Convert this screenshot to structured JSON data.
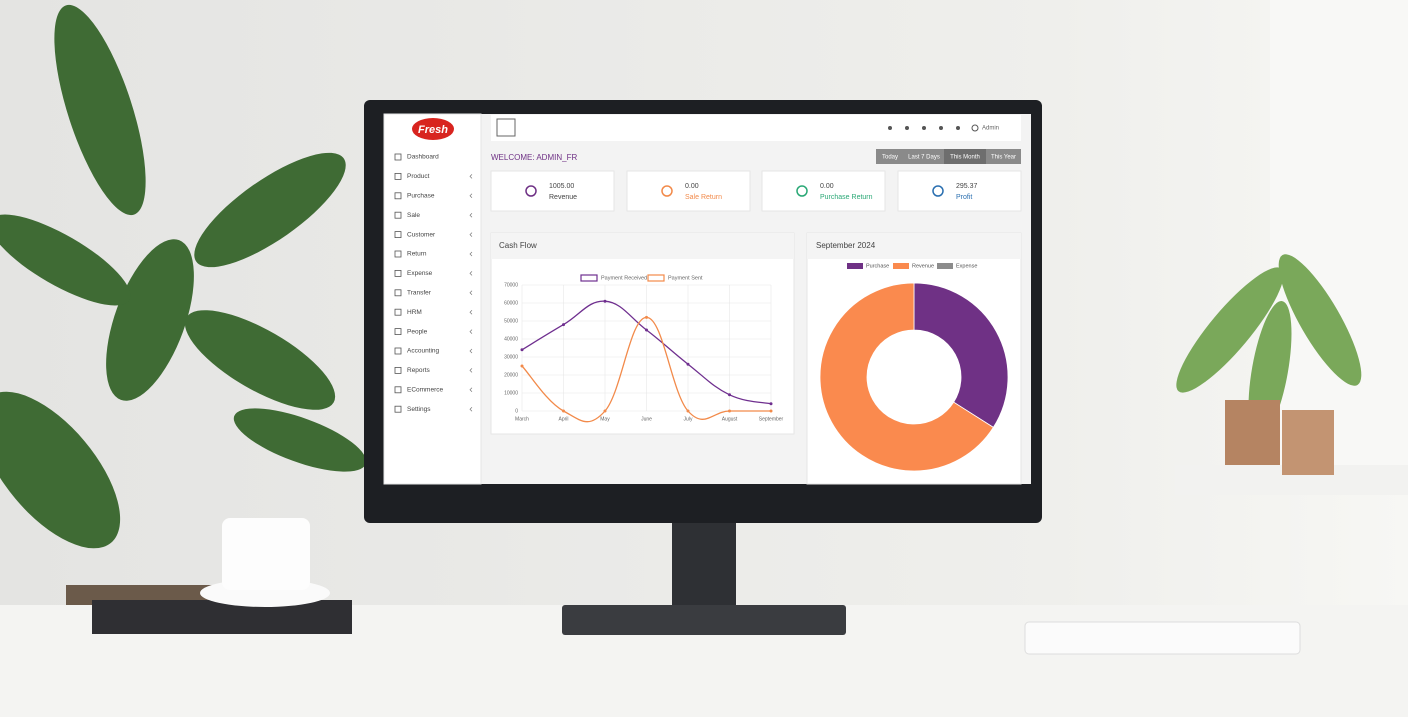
{
  "logo": "Fresh",
  "sidebar": [
    "Dashboard",
    "Product",
    "Purchase",
    "Sale",
    "Customer",
    "Return",
    "Expense",
    "Transfer",
    "HRM",
    "People",
    "Accounting",
    "Reports",
    "ECommerce",
    "Settings"
  ],
  "header": {
    "user": "Admin"
  },
  "welcome": "WELCOME: ADMIN_FR",
  "filters": [
    "Today",
    "Last 7 Days",
    "This Month",
    "This Year"
  ],
  "cards": [
    {
      "value": "1005.00",
      "label": "Revenue"
    },
    {
      "value": "0.00",
      "label": "Sale Return"
    },
    {
      "value": "0.00",
      "label": "Purchase Return"
    },
    {
      "value": "295.37",
      "label": "Profit"
    }
  ],
  "chart_data": [
    {
      "type": "line",
      "title": "Cash Flow",
      "categories": [
        "March",
        "April",
        "May",
        "June",
        "July",
        "August",
        "September"
      ],
      "series": [
        {
          "name": "Payment Received",
          "color": "#6f2f8f",
          "values": [
            34000,
            48000,
            61000,
            45000,
            26000,
            9000,
            4000
          ]
        },
        {
          "name": "Payment Sent",
          "color": "#f28a4a",
          "values": [
            25000,
            0,
            0,
            52000,
            0,
            0,
            0
          ]
        }
      ],
      "ylim": [
        0,
        70000
      ],
      "yticks": [
        0,
        10000,
        20000,
        30000,
        40000,
        50000,
        60000,
        70000
      ],
      "grid": true
    },
    {
      "type": "pie",
      "title": "September 2024",
      "categories": [
        "Purchase",
        "Revenue",
        "Expense"
      ],
      "values": [
        34,
        66,
        0
      ],
      "colors": [
        "#6f3185",
        "#fa8a4e",
        "#8c8c8c"
      ],
      "donut": true
    }
  ]
}
